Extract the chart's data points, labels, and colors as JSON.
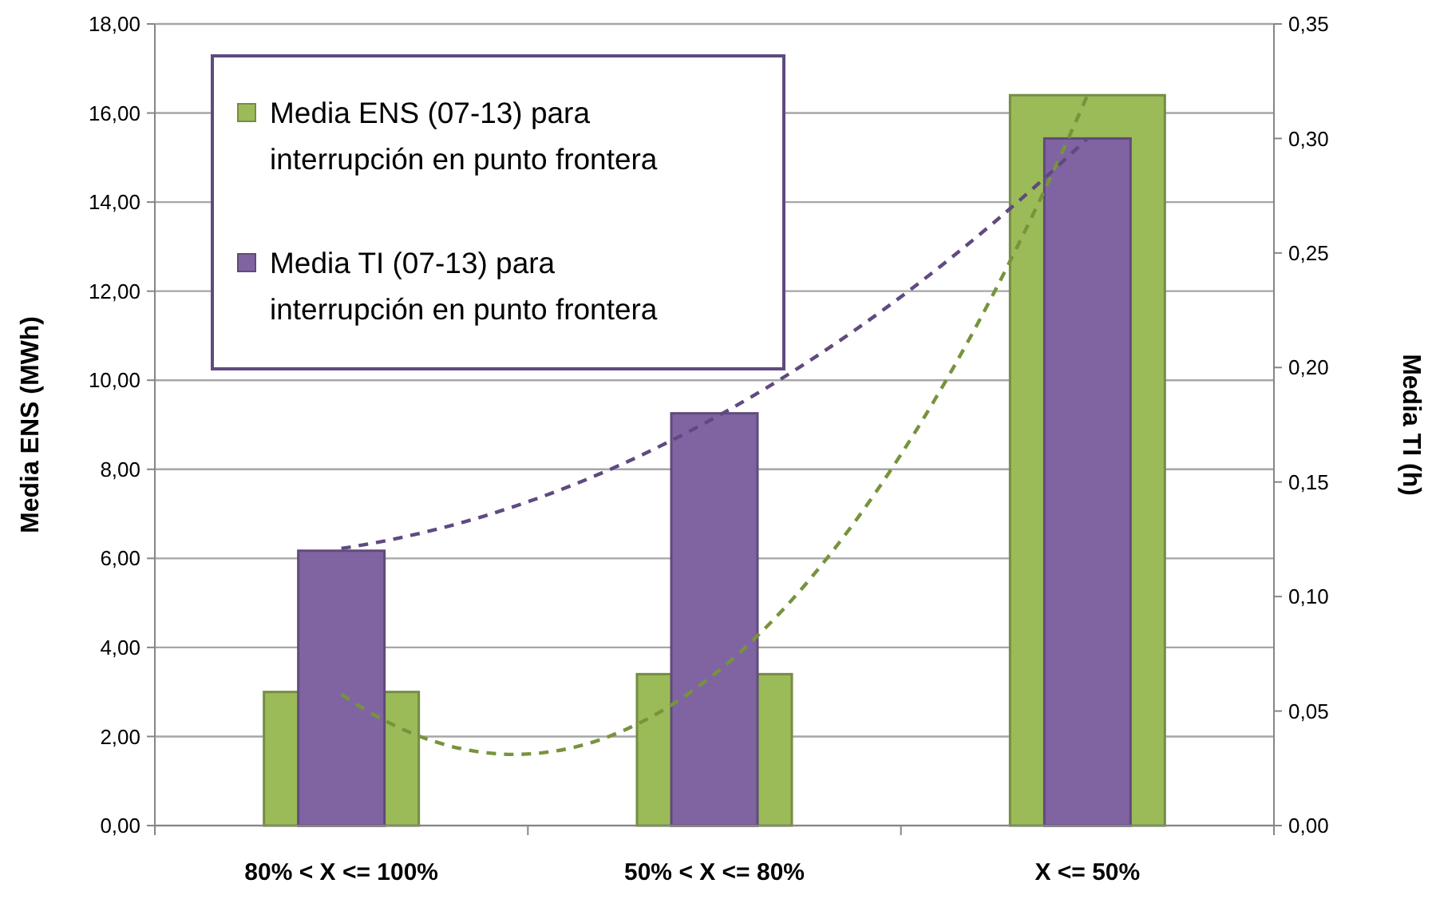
{
  "chart_data": {
    "type": "bar",
    "categories": [
      "80% < X <= 100%",
      "50% < X <= 80%",
      "X <= 50%"
    ],
    "ylabel": "Media ENS (MWh)",
    "y2label": "Media TI (h)",
    "ylim": [
      0,
      18
    ],
    "yticks": [
      {
        "value": 0,
        "label": "0,00"
      },
      {
        "value": 2,
        "label": "2,00"
      },
      {
        "value": 4,
        "label": "4,00"
      },
      {
        "value": 6,
        "label": "6,00"
      },
      {
        "value": 8,
        "label": "8,00"
      },
      {
        "value": 10,
        "label": "10,00"
      },
      {
        "value": 12,
        "label": "12,00"
      },
      {
        "value": 14,
        "label": "14,00"
      },
      {
        "value": 16,
        "label": "16,00"
      },
      {
        "value": 18,
        "label": "18,00"
      }
    ],
    "y2lim": [
      0,
      0.35
    ],
    "y2ticks": [
      {
        "value": 0,
        "label": "0,00"
      },
      {
        "value": 0.05,
        "label": "0,05"
      },
      {
        "value": 0.1,
        "label": "0,10"
      },
      {
        "value": 0.15,
        "label": "0,15"
      },
      {
        "value": 0.2,
        "label": "0,20"
      },
      {
        "value": 0.25,
        "label": "0,25"
      },
      {
        "value": 0.3,
        "label": "0,30"
      },
      {
        "value": 0.35,
        "label": "0,35"
      }
    ],
    "grid": "y",
    "legend": "top left",
    "series": [
      {
        "name": "Media ENS (07-13) para interrupción en punto frontera",
        "color": "#9bbb59",
        "values": [
          3.0,
          3.4,
          16.4
        ]
      },
      {
        "name": "Media TI (07-13) para interrupción en punto frontera",
        "color": "#8064a2",
        "axis": "y2",
        "values": [
          0.12,
          0.18,
          0.3
        ]
      },
      {
        "type": "line",
        "color": "#77933c",
        "line_style": "dashed",
        "values": [
          2.95,
          3.4,
          16.4
        ]
      },
      {
        "type": "line",
        "color": "#5f4a80",
        "line_style": "dashed",
        "axis": "y2",
        "values": [
          0.121,
          0.178,
          0.3
        ]
      }
    ]
  }
}
